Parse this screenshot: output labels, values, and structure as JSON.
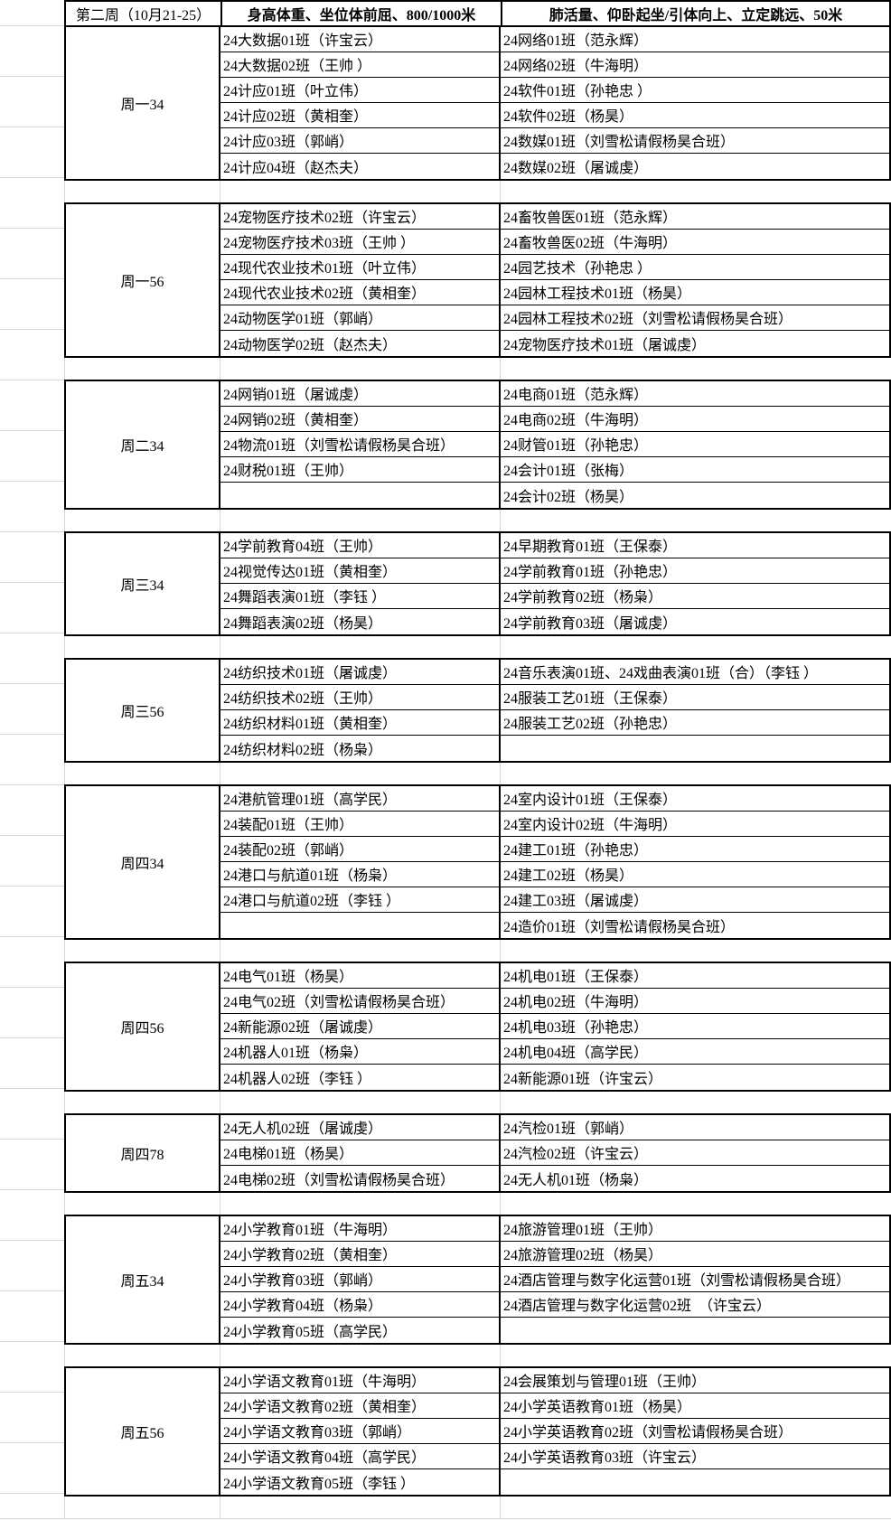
{
  "sheet": {
    "header": {
      "week_label": "第二周（10月21-25）",
      "col2_title": "身高体重、坐位体前屈、800/1000米",
      "col3_title": "肺活量、仰卧起坐/引体向上、立定跳远、50米"
    },
    "blocks": [
      {
        "slot": "周一34",
        "rows": [
          [
            "24大数据01班（许宝云）",
            "24网络01班（范永辉）"
          ],
          [
            "24大数据02班（王帅 ）",
            "24网络02班（牛海明）"
          ],
          [
            "24计应01班（叶立伟）",
            "24软件01班（孙艳忠 ）"
          ],
          [
            "24计应02班（黄相奎）",
            "24软件02班（杨昊）"
          ],
          [
            "24计应03班（郭峭）",
            "24数媒01班（刘雪松请假杨昊合班）"
          ],
          [
            "24计应04班（赵杰夫）",
            "24数媒02班（屠诚虔）"
          ]
        ]
      },
      {
        "slot": "周一56",
        "rows": [
          [
            "24宠物医疗技术02班（许宝云）",
            "24畜牧兽医01班（范永辉）"
          ],
          [
            "24宠物医疗技术03班（王帅 ）",
            "24畜牧兽医02班（牛海明）"
          ],
          [
            "24现代农业技术01班（叶立伟）",
            "24园艺技术（孙艳忠 ）"
          ],
          [
            "24现代农业技术02班（黄相奎）",
            "24园林工程技术01班（杨昊）"
          ],
          [
            "24动物医学01班（郭峭）",
            "24园林工程技术02班（刘雪松请假杨昊合班）"
          ],
          [
            "24动物医学02班（赵杰夫）",
            "24宠物医疗技术01班（屠诚虔）"
          ]
        ]
      },
      {
        "slot": "周二34",
        "rows": [
          [
            "24网销01班（屠诚虔）",
            "24电商01班（范永辉）"
          ],
          [
            "24网销02班（黄相奎）",
            "24电商02班（牛海明）"
          ],
          [
            "24物流01班（刘雪松请假杨昊合班）",
            "24财管01班（孙艳忠）"
          ],
          [
            "24财税01班（王帅）",
            "24会计01班（张梅）"
          ],
          [
            "",
            "24会计02班（杨昊）"
          ]
        ]
      },
      {
        "slot": "周三34",
        "rows": [
          [
            "24学前教育04班（王帅）",
            "24早期教育01班（王保泰）"
          ],
          [
            "24视觉传达01班（黄相奎）",
            "24学前教育01班（孙艳忠）"
          ],
          [
            "24舞蹈表演01班（李钰 ）",
            "24学前教育02班（杨枭）"
          ],
          [
            "24舞蹈表演02班（杨昊）",
            "24学前教育03班（屠诚虔）"
          ]
        ]
      },
      {
        "slot": "周三56",
        "rows": [
          [
            "24纺织技术01班（屠诚虔）",
            "24音乐表演01班、24戏曲表演01班（合）（李钰 ）"
          ],
          [
            "24纺织技术02班（王帅）",
            "24服装工艺01班（王保泰）"
          ],
          [
            "24纺织材料01班（黄相奎）",
            "24服装工艺02班（孙艳忠）"
          ],
          [
            "24纺织材料02班（杨枭）",
            ""
          ]
        ]
      },
      {
        "slot": "周四34",
        "rows": [
          [
            "24港航管理01班（高学民）",
            "24室内设计01班（王保泰）"
          ],
          [
            "24装配01班（王帅）",
            "24室内设计02班（牛海明）"
          ],
          [
            "24装配02班（郭峭）",
            "24建工01班（孙艳忠）"
          ],
          [
            "24港口与航道01班（杨枭）",
            "24建工02班（杨昊）"
          ],
          [
            "24港口与航道02班（李钰 ）",
            "24建工03班（屠诚虔）"
          ],
          [
            "",
            "24造价01班（刘雪松请假杨昊合班）"
          ]
        ]
      },
      {
        "slot": "周四56",
        "rows": [
          [
            "24电气01班（杨昊）",
            "24机电01班（王保泰）"
          ],
          [
            "24电气02班（刘雪松请假杨昊合班）",
            "24机电02班（牛海明）"
          ],
          [
            "24新能源02班（屠诚虔）",
            "24机电03班（孙艳忠）"
          ],
          [
            "24机器人01班（杨枭）",
            "24机电04班（高学民）"
          ],
          [
            "24机器人02班（李钰 ）",
            "24新能源01班（许宝云）"
          ]
        ]
      },
      {
        "slot": "周四78",
        "rows": [
          [
            "24无人机02班（屠诚虔）",
            "24汽检01班（郭峭）"
          ],
          [
            "24电梯01班（杨昊）",
            "24汽检02班（许宝云）"
          ],
          [
            "24电梯02班（刘雪松请假杨昊合班）",
            "24无人机01班（杨枭）"
          ]
        ]
      },
      {
        "slot": "周五34",
        "rows": [
          [
            "24小学教育01班（牛海明）",
            "24旅游管理01班（王帅）"
          ],
          [
            "24小学教育02班（黄相奎）",
            "24旅游管理02班（杨昊）"
          ],
          [
            "24小学教育03班（郭峭）",
            "24酒店管理与数字化运营01班（刘雪松请假杨昊合班）"
          ],
          [
            "24小学教育04班（杨枭）",
            "24酒店管理与数字化运营02班　（许宝云）"
          ],
          [
            "24小学教育05班（高学民）",
            ""
          ]
        ]
      },
      {
        "slot": "周五56",
        "rows": [
          [
            "24小学语文教育01班（牛海明）",
            "24会展策划与管理01班（王帅）"
          ],
          [
            "24小学语文教育02班（黄相奎）",
            "24小学英语教育01班（杨昊）"
          ],
          [
            "24小学语文教育03班（郭峭）",
            "24小学英语教育02班（刘雪松请假杨昊合班）"
          ],
          [
            "24小学语文教育04班（高学民）",
            "24小学英语教育03班（许宝云）"
          ],
          [
            "24小学语文教育05班（李钰 ）",
            ""
          ]
        ]
      }
    ]
  }
}
